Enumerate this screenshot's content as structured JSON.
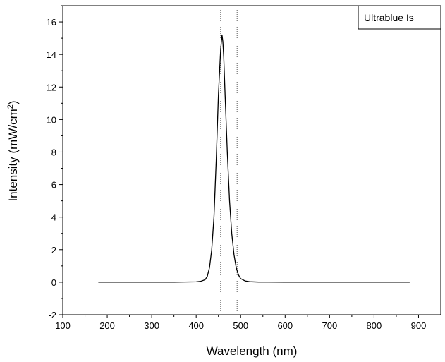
{
  "chart_data": {
    "type": "line",
    "title": "",
    "xlabel": "Wavelength (nm)",
    "ylabel_main": "Intensity (mW/cm",
    "ylabel_sup": "2",
    "ylabel_tail": ")",
    "xlim": [
      100,
      950
    ],
    "ylim": [
      -2,
      17
    ],
    "xticks": [
      100,
      200,
      300,
      400,
      500,
      600,
      700,
      800,
      900
    ],
    "xtick_labels": [
      "100",
      "200",
      "300",
      "400",
      "500",
      "600",
      "700",
      "800",
      "900"
    ],
    "yticks": [
      -2,
      0,
      2,
      4,
      6,
      8,
      10,
      12,
      14,
      16
    ],
    "ytick_labels": [
      "-2",
      "0",
      "2",
      "4",
      "6",
      "8",
      "10",
      "12",
      "14",
      "16"
    ],
    "grid": false,
    "legend_position": "top-right",
    "reference_lines_x": [
      455,
      492
    ],
    "series": [
      {
        "name": "Ultrablue Is",
        "color": "#000000",
        "x": [
          180,
          250,
          300,
          350,
          400,
          410,
          420,
          425,
          430,
          435,
          440,
          445,
          450,
          455,
          458,
          460,
          462,
          465,
          470,
          475,
          480,
          485,
          490,
          495,
          500,
          510,
          520,
          540,
          600,
          700,
          800,
          880
        ],
        "y": [
          0,
          0,
          0,
          0,
          0.02,
          0.05,
          0.15,
          0.35,
          0.9,
          2.0,
          4.0,
          7.5,
          11.5,
          14.3,
          15.2,
          14.8,
          13.8,
          11.5,
          8.0,
          5.0,
          3.0,
          1.7,
          0.9,
          0.45,
          0.22,
          0.08,
          0.03,
          0.01,
          0,
          0,
          0,
          0
        ]
      }
    ]
  }
}
